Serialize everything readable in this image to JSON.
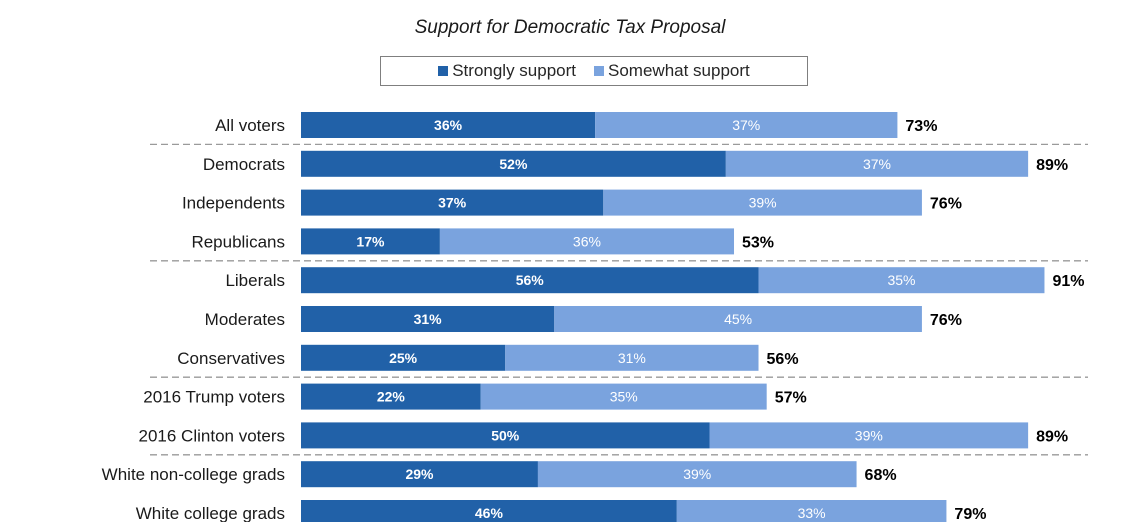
{
  "chart_data": {
    "type": "bar",
    "orientation": "horizontal",
    "stacked": true,
    "title": "Support for Democratic Tax Proposal",
    "legend_position": "top",
    "categories": [
      "All voters",
      "Democrats",
      "Independents",
      "Republicans",
      "Liberals",
      "Moderates",
      "Conservatives",
      "2016 Trump voters",
      "2016 Clinton voters",
      "White non-college grads",
      "White college grads"
    ],
    "series": [
      {
        "name": "Strongly support",
        "color": "#2161a8",
        "values": [
          36,
          52,
          37,
          17,
          56,
          31,
          25,
          22,
          50,
          29,
          46
        ]
      },
      {
        "name": "Somewhat support",
        "color": "#7aa3de",
        "values": [
          37,
          37,
          39,
          36,
          35,
          45,
          31,
          35,
          39,
          39,
          33
        ]
      }
    ],
    "totals": [
      73,
      89,
      76,
      53,
      91,
      76,
      56,
      57,
      89,
      68,
      79
    ],
    "group_dividers_after": [
      "All voters",
      "Republicans",
      "Conservatives",
      "2016 Clinton voters"
    ],
    "grid": false,
    "xlim": [
      0,
      100
    ]
  }
}
